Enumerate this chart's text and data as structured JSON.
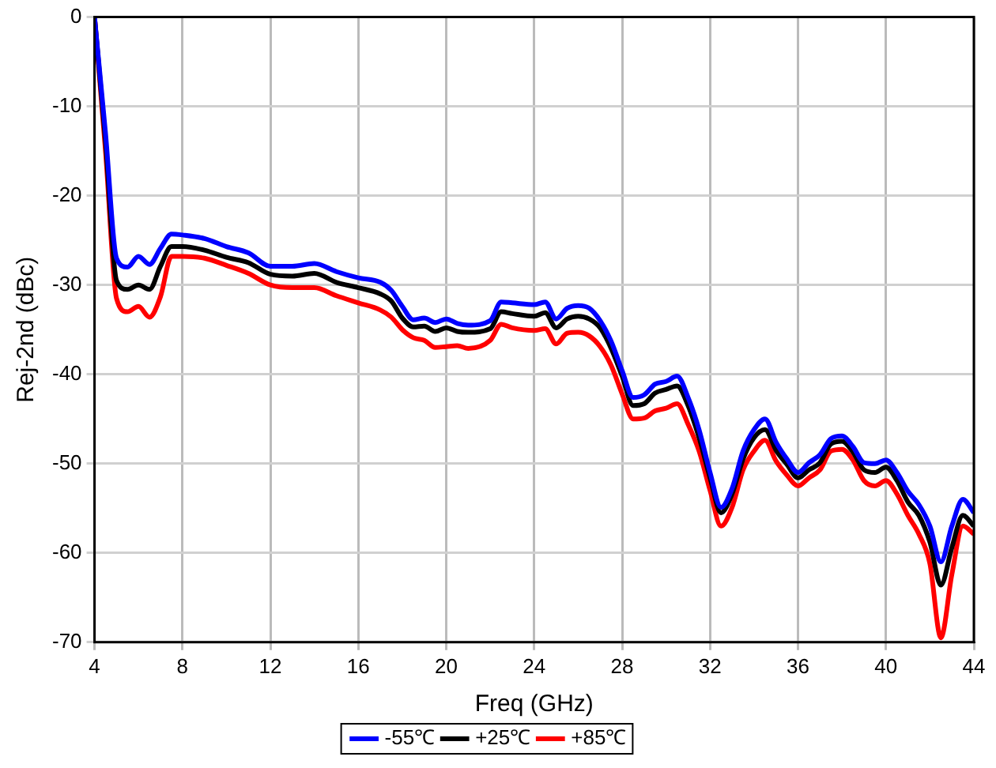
{
  "chart_data": {
    "type": "line",
    "xlabel": "Freq (GHz)",
    "ylabel": "Rej-2nd (dBc)",
    "x": [
      4,
      4.5,
      5,
      5.5,
      6,
      6.5,
      7,
      7.5,
      8,
      9,
      10,
      11,
      12,
      13,
      14,
      15,
      16,
      17,
      17.5,
      18,
      18.5,
      19,
      19.5,
      20,
      20.5,
      21,
      22,
      22.5,
      23,
      24,
      24.5,
      25,
      25.5,
      26,
      26.5,
      27,
      27.5,
      28,
      28.5,
      29,
      29.5,
      30,
      30.5,
      31,
      31.5,
      32,
      32.5,
      33,
      33.5,
      34,
      34.5,
      35,
      35.5,
      36,
      36.5,
      37,
      37.5,
      38,
      38.5,
      39,
      39.5,
      40,
      40.5,
      41,
      41.5,
      42,
      42.5,
      43,
      43.5,
      44
    ],
    "series": [
      {
        "name": "-55℃",
        "color": "#0000ff",
        "values": [
          0,
          -13,
          -27,
          -28,
          -26.8,
          -27.7,
          -25.9,
          -24.3,
          -24.4,
          -24.8,
          -25.7,
          -26.4,
          -27.9,
          -27.9,
          -27.6,
          -28.5,
          -29.2,
          -29.7,
          -30.6,
          -32.4,
          -33.9,
          -33.7,
          -34.2,
          -33.8,
          -34.3,
          -34.5,
          -34,
          -31.9,
          -32,
          -32.2,
          -31.9,
          -33.8,
          -32.6,
          -32.3,
          -32.6,
          -34,
          -36.3,
          -39.6,
          -42.6,
          -42.3,
          -41.1,
          -40.8,
          -40.2,
          -42.6,
          -46.2,
          -51,
          -54.9,
          -52.8,
          -48.6,
          -46.2,
          -45,
          -47.6,
          -49.5,
          -51,
          -49.9,
          -49,
          -47.2,
          -46.9,
          -48.1,
          -49.9,
          -50,
          -49.6,
          -51,
          -53.1,
          -54.6,
          -57,
          -61,
          -57,
          -54,
          -55.5
        ]
      },
      {
        "name": "+25℃",
        "color": "#000000",
        "values": [
          0,
          -14,
          -29.5,
          -30.5,
          -30,
          -30.5,
          -27.9,
          -25.7,
          -25.7,
          -26.1,
          -26.9,
          -27.5,
          -28.8,
          -29,
          -28.7,
          -29.7,
          -30.3,
          -31,
          -31.8,
          -33.7,
          -34.7,
          -34.6,
          -35.2,
          -34.8,
          -35.2,
          -35.3,
          -34.9,
          -33,
          -33.2,
          -33.5,
          -33.1,
          -34.8,
          -33.8,
          -33.5,
          -33.8,
          -34.8,
          -37.1,
          -40.2,
          -43.5,
          -43.3,
          -42.1,
          -41.7,
          -41.3,
          -43.5,
          -47.1,
          -51.6,
          -55.5,
          -53.4,
          -49.5,
          -47.1,
          -46.2,
          -48.5,
          -50.1,
          -51.6,
          -50.7,
          -49.9,
          -47.8,
          -47.5,
          -48.7,
          -50.7,
          -51,
          -50.4,
          -51.9,
          -54.3,
          -55.8,
          -58.8,
          -63.6,
          -59.4,
          -55.8,
          -57
        ]
      },
      {
        "name": "+85℃",
        "color": "#ff0000",
        "values": [
          0,
          -15,
          -31.5,
          -33,
          -32.4,
          -33.6,
          -31.3,
          -26.8,
          -26.8,
          -27,
          -27.8,
          -28.7,
          -30,
          -30.3,
          -30.3,
          -31.2,
          -32,
          -32.8,
          -33.6,
          -35,
          -35.9,
          -36.2,
          -37,
          -36.9,
          -36.8,
          -37.1,
          -36.2,
          -34.4,
          -34.8,
          -35.1,
          -34.9,
          -36.6,
          -35.4,
          -35.3,
          -35.7,
          -36.9,
          -39,
          -42.2,
          -45,
          -44.9,
          -44.1,
          -43.8,
          -43.3,
          -45.6,
          -48.6,
          -53,
          -57,
          -54.9,
          -50.7,
          -48.6,
          -47.4,
          -49.7,
          -51.3,
          -52.5,
          -51.6,
          -50.7,
          -48.6,
          -48.4,
          -49.6,
          -51.9,
          -52.5,
          -51.9,
          -53.4,
          -55.8,
          -57.9,
          -61.2,
          -69.5,
          -62.4,
          -57,
          -57.9
        ]
      }
    ],
    "xlim": [
      4,
      44
    ],
    "xticks": [
      4,
      8,
      12,
      16,
      20,
      24,
      28,
      32,
      36,
      40,
      44
    ],
    "ylim": [
      -70,
      0
    ],
    "yticks": [
      -70,
      -60,
      -50,
      -40,
      -30,
      -20,
      -10,
      0
    ],
    "grid": true,
    "legend": "bottom",
    "marker": "none",
    "line_style": "solid"
  }
}
